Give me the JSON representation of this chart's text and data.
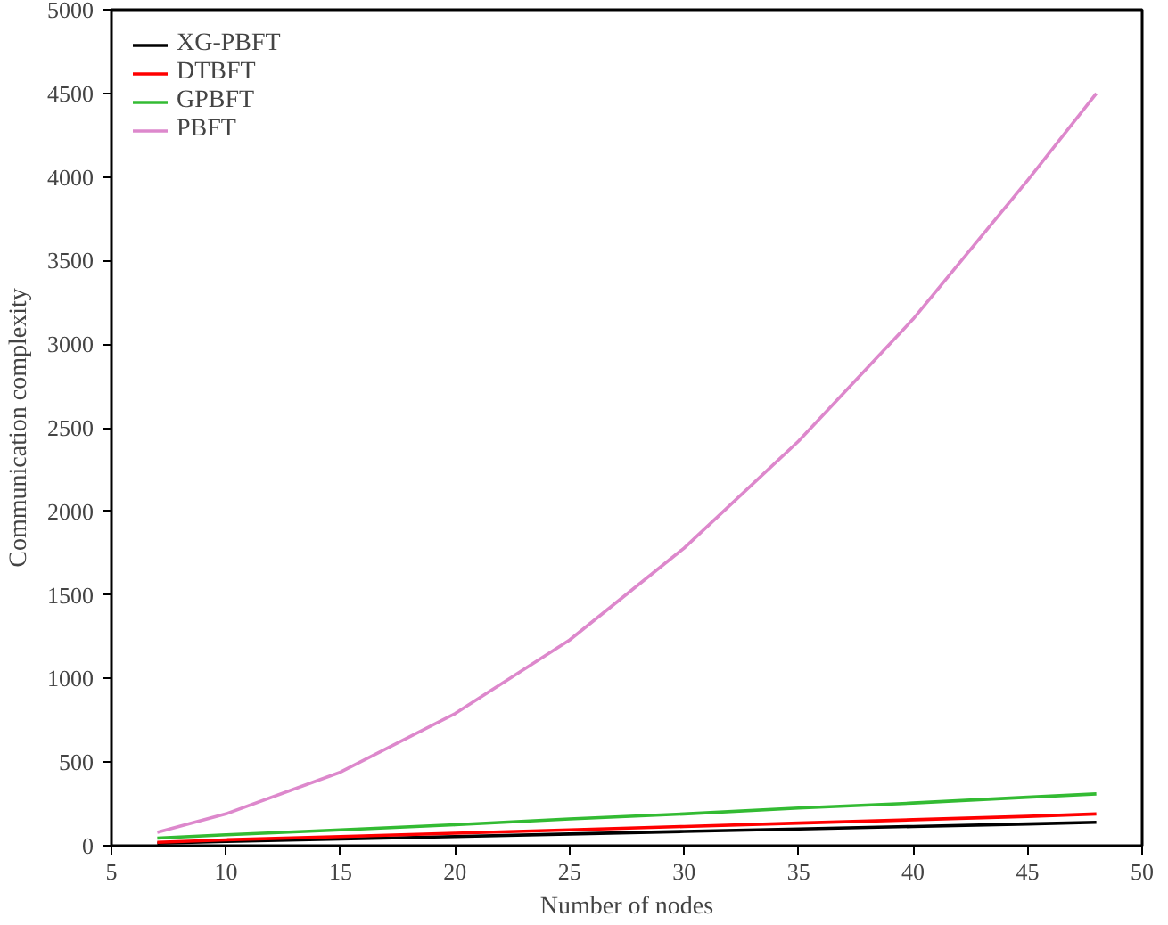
{
  "chart_data": {
    "type": "line",
    "xlabel": "Number of nodes",
    "ylabel": "Communication complexity",
    "xlim": [
      5,
      50
    ],
    "xticks": [
      5,
      10,
      15,
      20,
      25,
      30,
      35,
      40,
      45,
      50
    ],
    "ylim": [
      0,
      5000
    ],
    "yticks": [
      0,
      500,
      1000,
      1500,
      2000,
      2500,
      3000,
      3500,
      4000,
      4500,
      5000
    ],
    "grid": false,
    "legend": "top left",
    "marker": "none",
    "line_style": "solid",
    "x": [
      7,
      10,
      15,
      20,
      25,
      30,
      35,
      40,
      45,
      48
    ],
    "series": [
      {
        "name": "XG-PBFT",
        "color": "#000000",
        "values": [
          15,
          25,
          40,
          55,
          70,
          85,
          100,
          115,
          130,
          140
        ]
      },
      {
        "name": "DTBFT",
        "color": "#ff0000",
        "values": [
          20,
          35,
          55,
          75,
          95,
          115,
          135,
          155,
          175,
          190
        ]
      },
      {
        "name": "GPBFT",
        "color": "#33bb33",
        "values": [
          45,
          65,
          95,
          125,
          160,
          190,
          225,
          255,
          290,
          310
        ]
      },
      {
        "name": "PBFT",
        "color": "#dd88cc",
        "values": [
          80,
          190,
          440,
          790,
          1230,
          1780,
          2420,
          3150,
          3980,
          4500
        ]
      }
    ]
  }
}
